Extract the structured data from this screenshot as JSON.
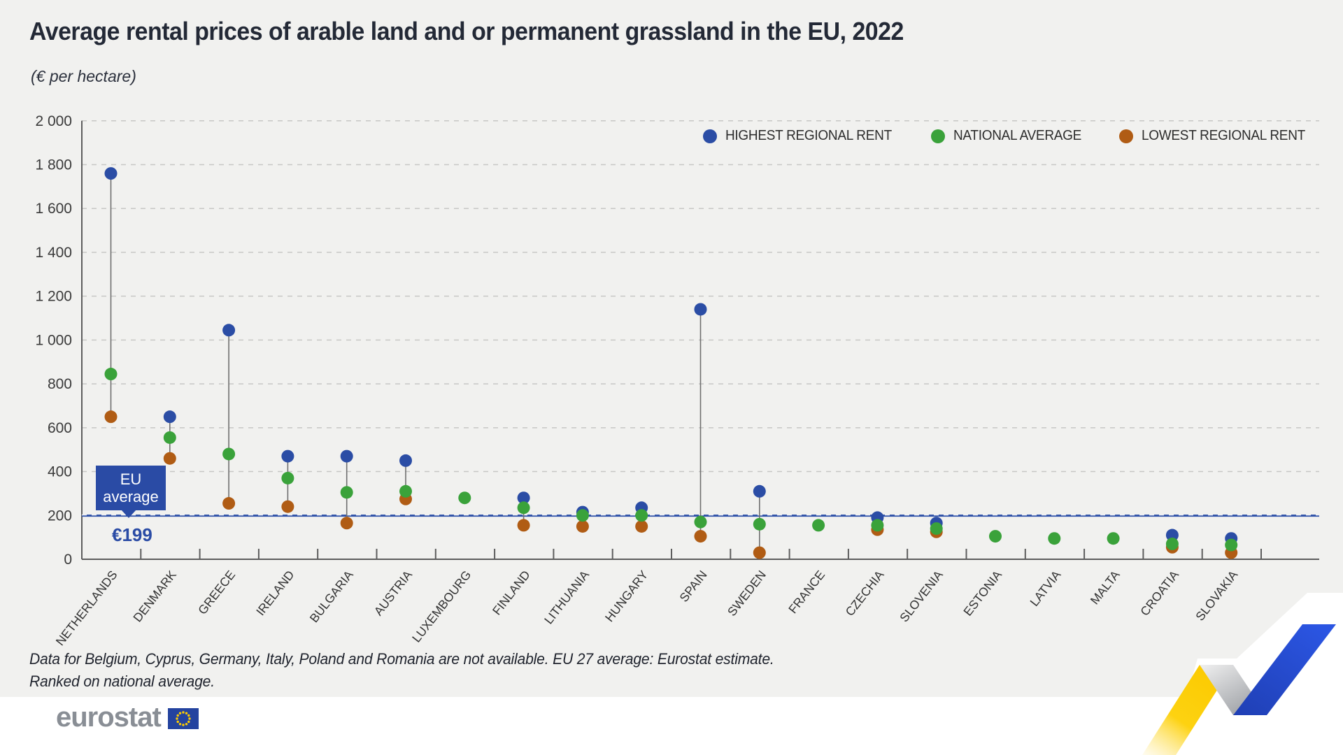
{
  "title": "Average rental prices of arable land and or permanent grassland in the EU, 2022",
  "subtitle": "(€ per hectare)",
  "legend": [
    {
      "label": "HIGHEST REGIONAL RENT",
      "color": "#2b4da5"
    },
    {
      "label": "NATIONAL AVERAGE",
      "color": "#3aa23a"
    },
    {
      "label": "LOWEST REGIONAL RENT",
      "color": "#b05c14"
    }
  ],
  "eu_average": {
    "line1": "EU",
    "line2": "average",
    "value_label": "€199",
    "value": 199
  },
  "footnotes": [
    "Data for Belgium, Cyprus, Germany, Italy, Poland and Romania are not available. EU 27 average: Eurostat estimate.",
    "Ranked on national average."
  ],
  "logo": {
    "text": "eurostat"
  },
  "chart_data": {
    "type": "scatter",
    "title": "Average rental prices of arable land and or permanent grassland in the EU, 2022",
    "ylabel": "€ per hectare",
    "xlabel": "",
    "ylim": [
      0,
      2000
    ],
    "ytick_step": 200,
    "grid": "horizontal dashed",
    "legend_position": "top-right",
    "eu_average_line": 199,
    "categories": [
      "NETHERLANDS",
      "DENMARK",
      "GREECE",
      "IRELAND",
      "BULGARIA",
      "AUSTRIA",
      "LUXEMBOURG",
      "FINLAND",
      "LITHUANIA",
      "HUNGARY",
      "SPAIN",
      "SWEDEN",
      "FRANCE",
      "CZECHIA",
      "SLOVENIA",
      "ESTONIA",
      "LATVIA",
      "MALTA",
      "CROATIA",
      "SLOVAKIA"
    ],
    "series": [
      {
        "name": "HIGHEST REGIONAL RENT",
        "color": "#2b4da5",
        "values": [
          1760,
          650,
          1045,
          470,
          470,
          450,
          null,
          280,
          215,
          235,
          1140,
          310,
          null,
          190,
          165,
          null,
          null,
          null,
          110,
          95
        ]
      },
      {
        "name": "NATIONAL AVERAGE",
        "color": "#3aa23a",
        "values": [
          845,
          555,
          480,
          370,
          305,
          310,
          280,
          235,
          200,
          200,
          170,
          160,
          155,
          155,
          140,
          105,
          95,
          95,
          70,
          65
        ]
      },
      {
        "name": "LOWEST REGIONAL RENT",
        "color": "#b05c14",
        "values": [
          650,
          460,
          255,
          240,
          165,
          275,
          null,
          155,
          150,
          150,
          105,
          30,
          null,
          135,
          125,
          null,
          null,
          null,
          55,
          30
        ]
      }
    ]
  }
}
